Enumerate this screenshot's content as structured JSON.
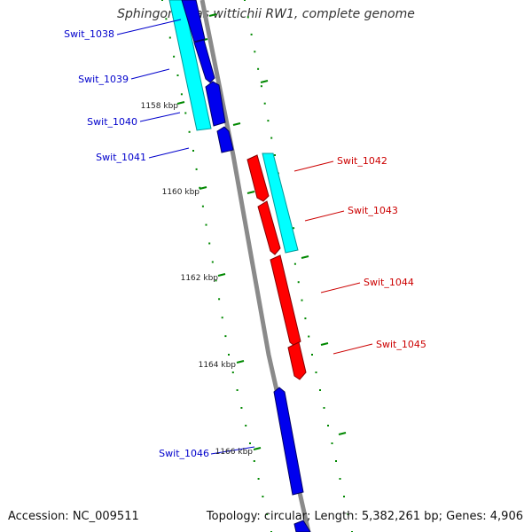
{
  "title": "Sphingomonas wittichii RW1, complete genome",
  "footer": {
    "accession": "Accession: NC_009511",
    "summary": "Topology: circular; Length: 5,382,261 bp; Genes: 4,906"
  },
  "colors": {
    "forward_gene": "#0000ee",
    "reverse_gene": "#ff0000",
    "cds_band": "#00ffff",
    "backbone": "#888888",
    "tick": "#008800",
    "forward_label": "#0000cc",
    "reverse_label": "#cc0000"
  },
  "ticks": [
    {
      "kbp": 1158,
      "label": "1158 kbp"
    },
    {
      "kbp": 1160,
      "label": "1160 kbp"
    },
    {
      "kbp": 1162,
      "label": "1162 kbp"
    },
    {
      "kbp": 1164,
      "label": "1164 kbp"
    },
    {
      "kbp": 1166,
      "label": "1166 kbp"
    }
  ],
  "genes": [
    {
      "name": "Swit_1038",
      "strand": "forward"
    },
    {
      "name": "Swit_1039",
      "strand": "forward"
    },
    {
      "name": "Swit_1040",
      "strand": "forward"
    },
    {
      "name": "Swit_1041",
      "strand": "forward"
    },
    {
      "name": "Swit_1042",
      "strand": "reverse"
    },
    {
      "name": "Swit_1043",
      "strand": "reverse"
    },
    {
      "name": "Swit_1044",
      "strand": "reverse"
    },
    {
      "name": "Swit_1045",
      "strand": "reverse"
    },
    {
      "name": "Swit_1046",
      "strand": "forward"
    }
  ]
}
